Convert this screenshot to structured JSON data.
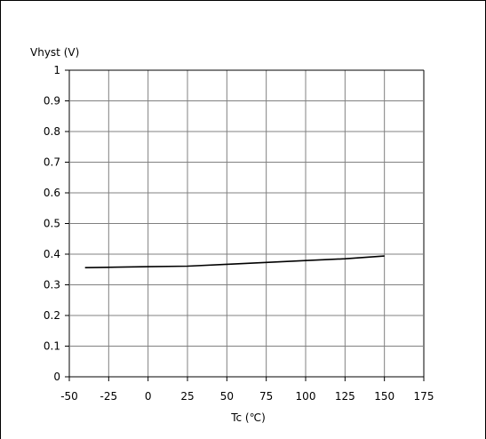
{
  "chart_data": {
    "type": "line",
    "title": "",
    "xlabel": "Tc (℃)",
    "ylabel": "Vhyst (V)",
    "xlim": [
      -50,
      175
    ],
    "ylim": [
      0,
      1
    ],
    "x_ticks": [
      -50,
      -25,
      0,
      25,
      50,
      75,
      100,
      125,
      150,
      175
    ],
    "y_ticks": [
      0,
      0.1,
      0.2,
      0.3,
      0.4,
      0.5,
      0.6,
      0.7,
      0.8,
      0.9,
      1
    ],
    "x_tick_labels": [
      "-50",
      "-25",
      "0",
      "25",
      "50",
      "75",
      "100",
      "125",
      "150",
      "175"
    ],
    "y_tick_labels": [
      "0",
      "0.1",
      "0.2",
      "0.3",
      "0.4",
      "0.5",
      "0.6",
      "0.7",
      "0.8",
      "0.9",
      "1"
    ],
    "grid": true,
    "legend": "none",
    "series": [
      {
        "x": [
          -40,
          0,
          25,
          50,
          75,
          100,
          125,
          150
        ],
        "y": [
          0.356,
          0.359,
          0.361,
          0.367,
          0.373,
          0.379,
          0.385,
          0.394
        ]
      }
    ],
    "colors": {
      "line": "#000000",
      "grid": "#808080",
      "axis": "#000000"
    }
  }
}
